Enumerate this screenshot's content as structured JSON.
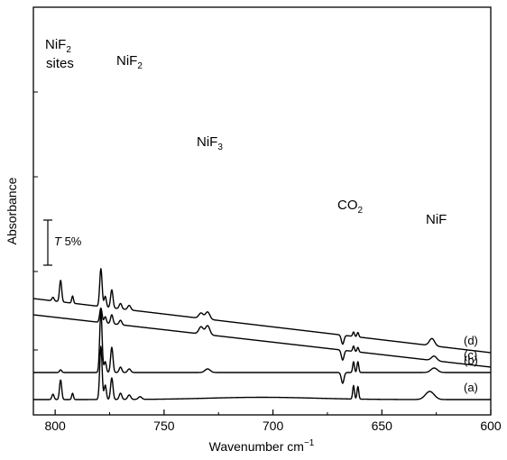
{
  "chart_data": {
    "type": "line",
    "xlabel": "Wavenumber cm",
    "xlabel_sup": "−1",
    "ylabel": "Absorbance",
    "xlim": [
      810,
      600
    ],
    "x_direction": "reversed",
    "xticks": [
      800,
      750,
      700,
      650,
      600
    ],
    "y_tick_labels": "none",
    "grid": false,
    "legend": "none",
    "scale_bar": {
      "label_italic": "T",
      "label": " 5%"
    },
    "annotations": [
      {
        "id": "nif2-sites",
        "base": "NiF",
        "sub": "2",
        "extra": "sites",
        "x": 797
      },
      {
        "id": "nif2",
        "base": "NiF",
        "sub": "2",
        "x": 774
      },
      {
        "id": "nif3",
        "base": "NiF",
        "sub": "3",
        "x": 730
      },
      {
        "id": "co2",
        "base": "CO",
        "sub": "2",
        "x": 665
      },
      {
        "id": "nif",
        "base": "NiF",
        "sub": "",
        "x": 627
      }
    ],
    "series": [
      {
        "label": "(a)",
        "baseline": 0.0,
        "slope": 0.0,
        "peaks": [
          [
            801,
            0.6,
            0.5
          ],
          [
            797.5,
            2.2,
            0.5
          ],
          [
            792,
            0.7,
            0.4
          ],
          [
            779,
            5.9,
            0.55
          ],
          [
            777,
            1.6,
            0.5
          ],
          [
            774,
            2.4,
            0.55
          ],
          [
            770,
            0.7,
            0.6
          ],
          [
            766,
            0.5,
            0.7
          ],
          [
            761,
            0.3,
            0.8
          ],
          [
            705,
            0.25,
            25
          ],
          [
            663,
            1.5,
            0.4
          ],
          [
            661,
            1.4,
            0.4
          ],
          [
            628,
            0.9,
            2.0
          ]
        ],
        "dips": []
      },
      {
        "label": "(b)",
        "baseline": 3.0,
        "slope": 0.0,
        "peaks": [
          [
            797.5,
            0.3,
            0.5
          ],
          [
            779,
            6.8,
            0.55
          ],
          [
            777,
            1.2,
            0.5
          ],
          [
            774,
            2.8,
            0.55
          ],
          [
            770,
            0.6,
            0.6
          ],
          [
            766,
            0.4,
            0.7
          ],
          [
            730,
            0.4,
            1.2
          ],
          [
            663,
            1.2,
            0.4
          ],
          [
            661,
            1.2,
            0.4
          ],
          [
            626,
            0.5,
            1.5
          ]
        ],
        "dips": [
          [
            668,
            1.2,
            0.6
          ]
        ]
      },
      {
        "label": "(c)",
        "baseline": 9.4,
        "slope": -5.8,
        "peaks": [
          [
            779,
            1.6,
            0.55
          ],
          [
            777,
            0.7,
            0.5
          ],
          [
            774,
            1.0,
            0.55
          ],
          [
            770,
            0.5,
            0.6
          ],
          [
            733,
            0.8,
            1.0
          ],
          [
            730,
            1.0,
            1.0
          ],
          [
            663,
            0.6,
            0.4
          ],
          [
            661,
            0.5,
            0.4
          ],
          [
            626,
            0.5,
            1.2
          ]
        ],
        "dips": [
          [
            668,
            1.1,
            0.6
          ]
        ]
      },
      {
        "label": "(d)",
        "baseline": 11.2,
        "slope": -6.0,
        "peaks": [
          [
            801,
            0.4,
            0.5
          ],
          [
            797.5,
            2.4,
            0.5
          ],
          [
            792,
            0.8,
            0.4
          ],
          [
            779,
            4.2,
            0.55
          ],
          [
            777,
            1.2,
            0.5
          ],
          [
            774,
            2.0,
            0.55
          ],
          [
            770,
            0.6,
            0.6
          ],
          [
            766,
            0.5,
            0.7
          ],
          [
            733,
            0.6,
            1.0
          ],
          [
            730,
            0.8,
            1.0
          ],
          [
            663,
            0.5,
            0.4
          ],
          [
            661,
            0.5,
            0.4
          ],
          [
            627,
            0.8,
            1.2
          ]
        ],
        "dips": [
          [
            668,
            1.0,
            0.6
          ]
        ]
      }
    ]
  }
}
